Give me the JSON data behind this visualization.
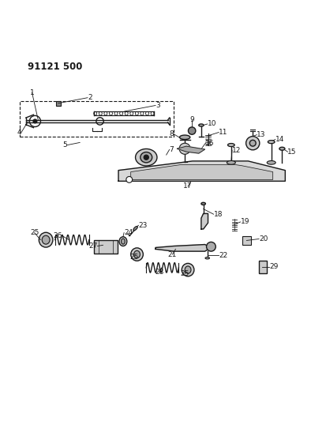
{
  "title": "91121 500",
  "bg_color": "#ffffff",
  "line_color": "#1a1a1a"
}
